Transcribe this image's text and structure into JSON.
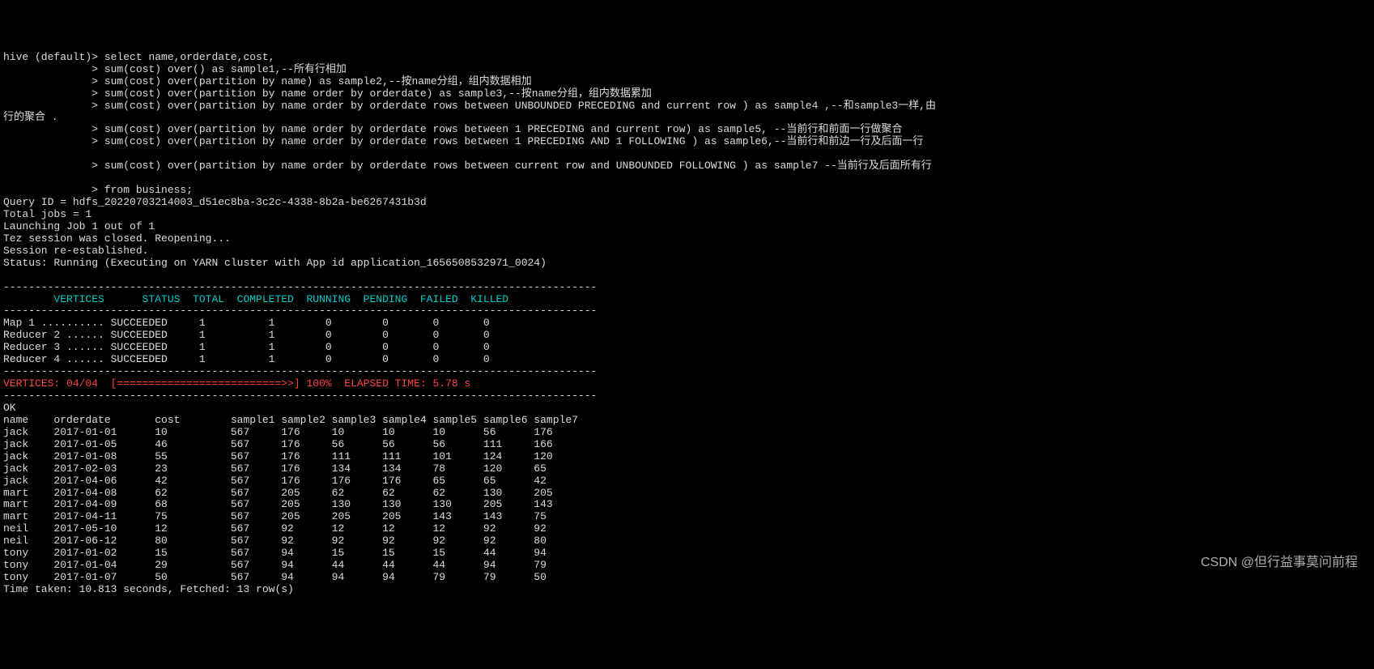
{
  "prompt": "hive (default)>",
  "cont": "              >",
  "query_lines": [
    "select name,orderdate,cost,",
    "sum(cost) over() as sample1,--所有行相加",
    "sum(cost) over(partition by name) as sample2,--按name分组，组内数据相加",
    "sum(cost) over(partition by name order by orderdate) as sample3,--按name分组，组内数据累加",
    "sum(cost) over(partition by name order by orderdate rows between UNBOUNDED PRECEDING and current row ) as sample4 ,--和sample3一样,由"
  ],
  "wrap_line": "行的聚合 .",
  "query_lines2": [
    "sum(cost) over(partition by name order by orderdate rows between 1 PRECEDING and current row) as sample5, --当前行和前面一行做聚合",
    "sum(cost) over(partition by name order by orderdate rows between 1 PRECEDING AND 1 FOLLOWING ) as sample6,--当前行和前边一行及后面一行"
  ],
  "query_lines3": [
    "sum(cost) over(partition by name order by orderdate rows between current row and UNBOUNDED FOLLOWING ) as sample7 --当前行及后面所有行"
  ],
  "query_lines4": [
    "from business;"
  ],
  "info_lines": [
    "Query ID = hdfs_20220703214003_d51ec8ba-3c2c-4338-8b2a-be6267431b3d",
    "Total jobs = 1",
    "Launching Job 1 out of 1",
    "Tez session was closed. Reopening...",
    "Session re-established.",
    "Status: Running (Executing on YARN cluster with App id application_1656508532971_0024)"
  ],
  "dash_line": "----------------------------------------------------------------------------------------------",
  "vertices_header": "        VERTICES      STATUS  TOTAL  COMPLETED  RUNNING  PENDING  FAILED  KILLED",
  "vertex_rows": [
    [
      "Map 1 ..........",
      "SUCCEEDED",
      "1",
      "1",
      "0",
      "0",
      "0",
      "0"
    ],
    [
      "Reducer 2 ......",
      "SUCCEEDED",
      "1",
      "1",
      "0",
      "0",
      "0",
      "0"
    ],
    [
      "Reducer 3 ......",
      "SUCCEEDED",
      "1",
      "1",
      "0",
      "0",
      "0",
      "0"
    ],
    [
      "Reducer 4 ......",
      "SUCCEEDED",
      "1",
      "1",
      "0",
      "0",
      "0",
      "0"
    ]
  ],
  "progress_line": "VERTICES: 04/04  [==========================>>] 100%  ELAPSED TIME: 5.78 s",
  "ok": "OK",
  "result_header": [
    "name",
    "orderdate",
    "cost",
    "sample1",
    "sample2",
    "sample3",
    "sample4",
    "sample5",
    "sample6",
    "sample7"
  ],
  "result_rows": [
    [
      "jack",
      "2017-01-01",
      "10",
      "567",
      "176",
      "10",
      "10",
      "10",
      "56",
      "176"
    ],
    [
      "jack",
      "2017-01-05",
      "46",
      "567",
      "176",
      "56",
      "56",
      "56",
      "111",
      "166"
    ],
    [
      "jack",
      "2017-01-08",
      "55",
      "567",
      "176",
      "111",
      "111",
      "101",
      "124",
      "120"
    ],
    [
      "jack",
      "2017-02-03",
      "23",
      "567",
      "176",
      "134",
      "134",
      "78",
      "120",
      "65"
    ],
    [
      "jack",
      "2017-04-06",
      "42",
      "567",
      "176",
      "176",
      "176",
      "65",
      "65",
      "42"
    ],
    [
      "mart",
      "2017-04-08",
      "62",
      "567",
      "205",
      "62",
      "62",
      "62",
      "130",
      "205"
    ],
    [
      "mart",
      "2017-04-09",
      "68",
      "567",
      "205",
      "130",
      "130",
      "130",
      "205",
      "143"
    ],
    [
      "mart",
      "2017-04-11",
      "75",
      "567",
      "205",
      "205",
      "205",
      "143",
      "143",
      "75"
    ],
    [
      "neil",
      "2017-05-10",
      "12",
      "567",
      "92",
      "12",
      "12",
      "12",
      "92",
      "92"
    ],
    [
      "neil",
      "2017-06-12",
      "80",
      "567",
      "92",
      "92",
      "92",
      "92",
      "92",
      "80"
    ],
    [
      "tony",
      "2017-01-02",
      "15",
      "567",
      "94",
      "15",
      "15",
      "15",
      "44",
      "94"
    ],
    [
      "tony",
      "2017-01-04",
      "29",
      "567",
      "94",
      "44",
      "44",
      "44",
      "94",
      "79"
    ],
    [
      "tony",
      "2017-01-07",
      "50",
      "567",
      "94",
      "94",
      "94",
      "79",
      "79",
      "50"
    ]
  ],
  "time_taken": "Time taken: 10.813 seconds, Fetched: 13 row(s)",
  "watermark": "CSDN @但行益事莫问前程",
  "col_widths_header": [
    8,
    15,
    12,
    8,
    8,
    8,
    8,
    8,
    8,
    8
  ],
  "col_widths_data": [
    8,
    15,
    12,
    8,
    8,
    8,
    8,
    8,
    8,
    8
  ]
}
